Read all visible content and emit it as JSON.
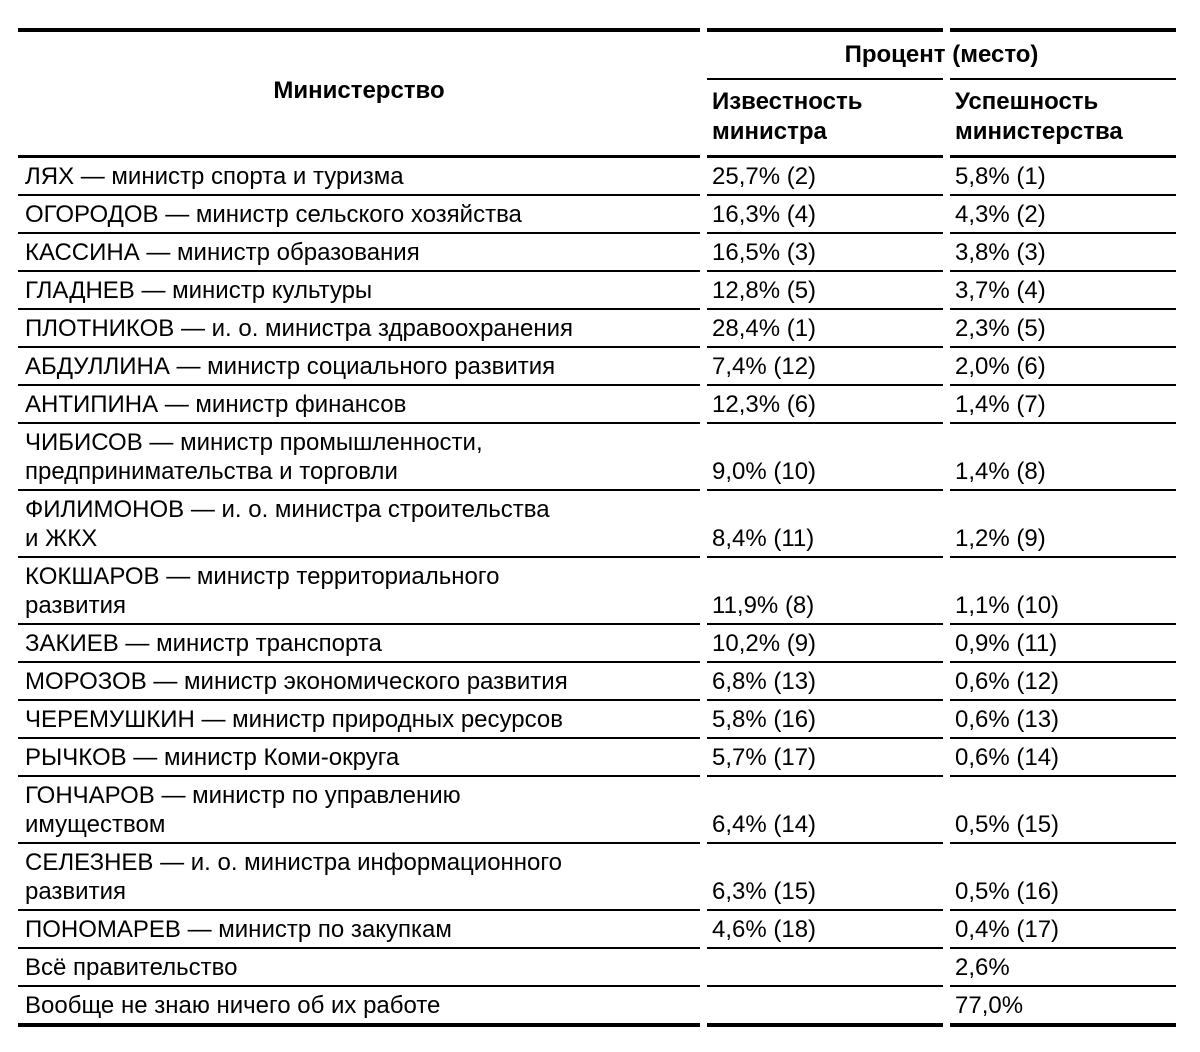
{
  "colors": {
    "background": "#ffffff",
    "text": "#000000",
    "rule": "#000000"
  },
  "chart_data": {
    "type": "table",
    "title": "",
    "group_header": "Процент (место)",
    "columns": {
      "ministry": "Министерство",
      "awareness": "Известность министра",
      "success": "Успешность министерства"
    },
    "rows": [
      {
        "ministry": "ЛЯХ — министр спорта и туризма",
        "awareness": "25,7% (2)",
        "success": "5,8% (1)"
      },
      {
        "ministry": "ОГОРОДОВ — министр сельского хозяйства",
        "awareness": "16,3% (4)",
        "success": "4,3% (2)"
      },
      {
        "ministry": "КАССИНА — министр образования",
        "awareness": "16,5% (3)",
        "success": "3,8% (3)"
      },
      {
        "ministry": "ГЛАДНЕВ — министр культуры",
        "awareness": "12,8% (5)",
        "success": "3,7% (4)"
      },
      {
        "ministry": "ПЛОТНИКОВ — и. о. министра здравоохранения",
        "awareness": "28,4% (1)",
        "success": "2,3% (5)"
      },
      {
        "ministry": "АБДУЛЛИНА — министр социального развития",
        "awareness": "7,4% (12)",
        "success": "2,0% (6)"
      },
      {
        "ministry": "АНТИПИНА — министр финансов",
        "awareness": "12,3% (6)",
        "success": "1,4% (7)"
      },
      {
        "ministry": "ЧИБИСОВ — министр промышленности,\nпредпринимательства и торговли",
        "awareness": "9,0% (10)",
        "success": "1,4% (8)"
      },
      {
        "ministry": "ФИЛИМОНОВ — и. о. министра строительства\nи ЖКХ",
        "awareness": "8,4% (11)",
        "success": "1,2% (9)"
      },
      {
        "ministry": "КОКШАРОВ — министр территориального\nразвития",
        "awareness": "11,9% (8)",
        "success": "1,1% (10)"
      },
      {
        "ministry": "ЗАКИЕВ — министр транспорта",
        "awareness": "10,2% (9)",
        "success": "0,9% (11)"
      },
      {
        "ministry": "МОРОЗОВ — министр экономического развития",
        "awareness": "6,8% (13)",
        "success": "0,6% (12)"
      },
      {
        "ministry": "ЧЕРЕМУШКИН — министр природных ресурсов",
        "awareness": "5,8% (16)",
        "success": "0,6% (13)"
      },
      {
        "ministry": "РЫЧКОВ — министр Коми-округа",
        "awareness": "5,7% (17)",
        "success": "0,6% (14)"
      },
      {
        "ministry": "ГОНЧАРОВ — министр по управлению\nимуществом",
        "awareness": "6,4% (14)",
        "success": "0,5% (15)"
      },
      {
        "ministry": "СЕЛЕЗНЕВ — и. о. министра информационного\nразвития",
        "awareness": "6,3% (15)",
        "success": "0,5% (16)"
      },
      {
        "ministry": "ПОНОМАРЕВ — министр по закупкам",
        "awareness": "4,6% (18)",
        "success": "0,4% (17)"
      },
      {
        "ministry": "Всё правительство",
        "awareness": "",
        "success": "2,6%"
      },
      {
        "ministry": "Вообще не знаю ничего об их работе",
        "awareness": "",
        "success": "77,0%"
      }
    ]
  }
}
